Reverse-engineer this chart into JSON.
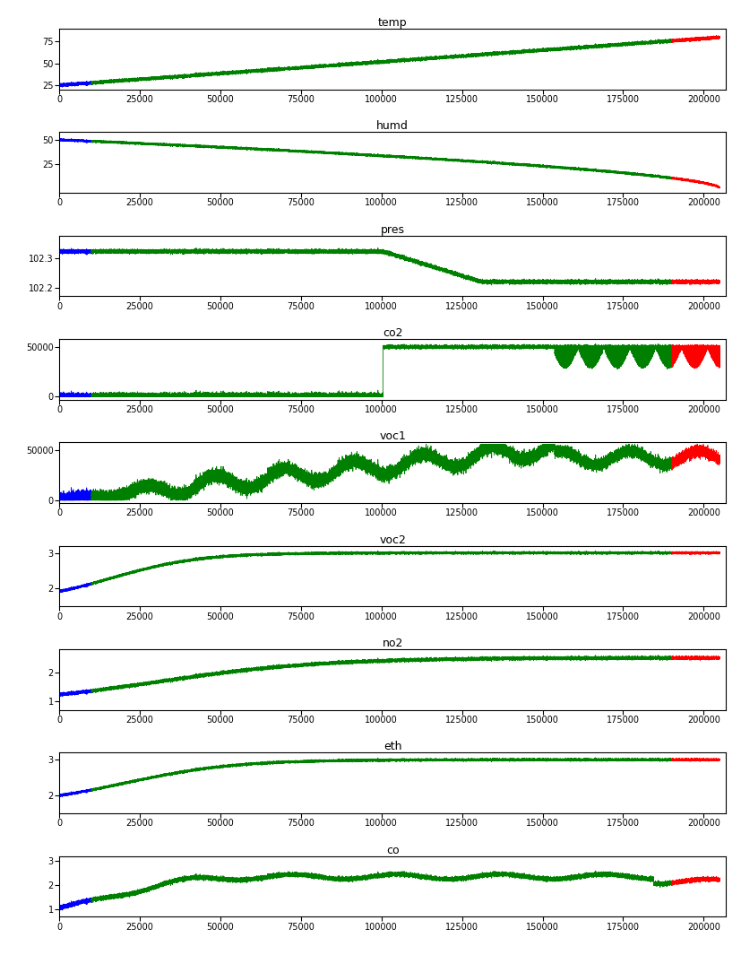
{
  "panels": [
    {
      "title": "temp",
      "ylim": [
        20,
        90
      ],
      "yticks": [
        25,
        50,
        75
      ],
      "blue_end": 10000,
      "red_start": 190000,
      "x_max": 205000,
      "profile": "temp"
    },
    {
      "title": "humd",
      "ylim": [
        -5,
        58
      ],
      "yticks": [
        25,
        50
      ],
      "blue_end": 10000,
      "red_start": 190000,
      "x_max": 205000,
      "profile": "humd"
    },
    {
      "title": "pres",
      "ylim": [
        102.17,
        102.38
      ],
      "yticks": [
        102.2,
        102.3
      ],
      "blue_end": 10000,
      "red_start": 190000,
      "x_max": 205000,
      "profile": "pres"
    },
    {
      "title": "co2",
      "ylim": [
        -3000,
        58000
      ],
      "yticks": [
        0,
        50000
      ],
      "blue_end": 10000,
      "red_start": 190000,
      "x_max": 205000,
      "profile": "co2"
    },
    {
      "title": "voc1",
      "ylim": [
        -3000,
        58000
      ],
      "yticks": [
        0,
        50000
      ],
      "blue_end": 10000,
      "red_start": 190000,
      "x_max": 205000,
      "profile": "voc1"
    },
    {
      "title": "voc2",
      "ylim": [
        1.5,
        3.2
      ],
      "yticks": [
        2,
        3
      ],
      "blue_end": 10000,
      "red_start": 190000,
      "x_max": 205000,
      "profile": "voc2"
    },
    {
      "title": "no2",
      "ylim": [
        0.7,
        2.8
      ],
      "yticks": [
        1,
        2
      ],
      "blue_end": 10000,
      "red_start": 190000,
      "x_max": 205000,
      "profile": "no2"
    },
    {
      "title": "eth",
      "ylim": [
        1.5,
        3.2
      ],
      "yticks": [
        2,
        3
      ],
      "blue_end": 10000,
      "red_start": 190000,
      "x_max": 205000,
      "profile": "eth"
    },
    {
      "title": "co",
      "ylim": [
        0.7,
        3.2
      ],
      "yticks": [
        1,
        2,
        3
      ],
      "blue_end": 10000,
      "red_start": 190000,
      "x_max": 205000,
      "profile": "co"
    }
  ],
  "xticks": [
    0,
    25000,
    50000,
    75000,
    100000,
    125000,
    150000,
    175000,
    200000
  ],
  "xmax": 207000,
  "blue_color": "#0000ff",
  "green_color": "#008000",
  "red_color": "#ff0000",
  "linewidth": 0.6
}
